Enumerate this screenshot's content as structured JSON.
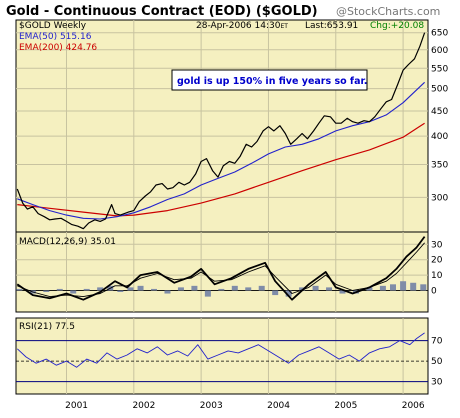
{
  "chart_data": {
    "type": "line",
    "title": "Gold - Continuous Contract (EOD) ($GOLD)",
    "watermark": "@StockCharts.com",
    "ticker_label": "$GOLD Weekly",
    "date_time": "28-Apr-2006 14:30",
    "timezone": "ET",
    "last_label": "Last:653.91",
    "change_label": "Chg:+20.08",
    "annotation": "gold is up 150% in five years so far.",
    "colors": {
      "panel_bg": "#f5f0c0",
      "grid": "#c8c3a0",
      "price": "#000000",
      "ema50": "#2222cc",
      "ema200": "#cc0000",
      "macd_hist": "#7f8ca8",
      "rsi": "#2222cc",
      "ref_line": "#000080",
      "change_text": "#008000"
    },
    "x_axis": {
      "labels": [
        "2001",
        "2002",
        "2003",
        "2004",
        "2005",
        "2006"
      ],
      "range": [
        2000.25,
        2006.37
      ],
      "label_positions": [
        2001.15,
        2002.15,
        2003.15,
        2004.15,
        2005.15,
        2006.15
      ],
      "year_lines": [
        2001,
        2002,
        2003,
        2004,
        2005,
        2006
      ]
    },
    "price_panel": {
      "scale": "log",
      "ylim": [
        255,
        690
      ],
      "ticks": [
        300,
        350,
        400,
        450,
        500,
        550,
        600,
        650
      ],
      "series": [
        {
          "name": "EMA(50)",
          "label": "EMA(50) 515.16",
          "role": "ema50"
        },
        {
          "name": "EMA(200)",
          "label": "EMA(200) 424.76",
          "role": "ema200"
        }
      ],
      "price": {
        "x": [
          2000.27,
          2000.35,
          2000.42,
          2000.5,
          2000.58,
          2000.67,
          2000.75,
          2000.83,
          2000.92,
          2001.0,
          2001.08,
          2001.17,
          2001.25,
          2001.33,
          2001.42,
          2001.5,
          2001.58,
          2001.67,
          2001.72,
          2001.8,
          2001.92,
          2002.0,
          2002.08,
          2002.17,
          2002.25,
          2002.33,
          2002.42,
          2002.5,
          2002.58,
          2002.67,
          2002.75,
          2002.83,
          2002.92,
          2003.0,
          2003.08,
          2003.17,
          2003.25,
          2003.33,
          2003.42,
          2003.5,
          2003.58,
          2003.67,
          2003.75,
          2003.83,
          2003.92,
          2004.0,
          2004.08,
          2004.17,
          2004.25,
          2004.33,
          2004.42,
          2004.5,
          2004.58,
          2004.67,
          2004.75,
          2004.83,
          2004.92,
          2005.0,
          2005.08,
          2005.17,
          2005.25,
          2005.33,
          2005.42,
          2005.5,
          2005.58,
          2005.67,
          2005.75,
          2005.83,
          2005.92,
          2006.0,
          2006.08,
          2006.17,
          2006.25,
          2006.32
        ],
        "y": [
          312,
          292,
          284,
          287,
          278,
          274,
          270,
          271,
          272,
          268,
          264,
          262,
          259,
          266,
          270,
          268,
          271,
          290,
          278,
          276,
          280,
          282,
          294,
          302,
          308,
          318,
          320,
          312,
          314,
          322,
          318,
          322,
          335,
          355,
          360,
          340,
          330,
          348,
          355,
          352,
          364,
          385,
          380,
          390,
          410,
          418,
          410,
          420,
          405,
          385,
          395,
          405,
          395,
          410,
          425,
          440,
          438,
          425,
          425,
          435,
          428,
          425,
          430,
          428,
          438,
          455,
          470,
          475,
          510,
          545,
          560,
          575,
          610,
          650
        ]
      },
      "ema50": {
        "x": [
          2000.27,
          2000.5,
          2000.75,
          2001.0,
          2001.25,
          2001.5,
          2001.75,
          2002.0,
          2002.25,
          2002.5,
          2002.75,
          2003.0,
          2003.25,
          2003.5,
          2003.75,
          2004.0,
          2004.25,
          2004.5,
          2004.75,
          2005.0,
          2005.25,
          2005.5,
          2005.75,
          2006.0,
          2006.32
        ],
        "y": [
          298,
          290,
          282,
          276,
          272,
          271,
          274,
          279,
          287,
          297,
          305,
          318,
          328,
          338,
          352,
          368,
          380,
          385,
          395,
          410,
          420,
          428,
          442,
          468,
          515
        ]
      },
      "ema200": {
        "x": [
          2000.27,
          2000.75,
          2001.25,
          2001.75,
          2002.0,
          2002.5,
          2003.0,
          2003.5,
          2004.0,
          2004.5,
          2005.0,
          2005.5,
          2006.0,
          2006.32
        ],
        "y": [
          290,
          285,
          280,
          275,
          276,
          282,
          292,
          305,
          322,
          340,
          358,
          375,
          398,
          425
        ]
      }
    },
    "macd_panel": {
      "label": "MACD(12,26,9)  35.01",
      "ylim": [
        -14,
        38
      ],
      "ticks": [
        0,
        10,
        20,
        30
      ],
      "macd": {
        "x": [
          2000.27,
          2000.5,
          2000.75,
          2001.0,
          2001.25,
          2001.5,
          2001.72,
          2001.9,
          2002.1,
          2002.35,
          2002.6,
          2002.85,
          2003.0,
          2003.2,
          2003.45,
          2003.7,
          2003.95,
          2004.1,
          2004.35,
          2004.6,
          2004.85,
          2005.0,
          2005.25,
          2005.5,
          2005.75,
          2005.9,
          2006.05,
          2006.2,
          2006.32
        ],
        "y": [
          4,
          -3,
          -5,
          -2,
          -6,
          -1,
          6,
          2,
          10,
          12,
          5,
          9,
          14,
          4,
          8,
          14,
          18,
          6,
          -6,
          4,
          12,
          2,
          -2,
          2,
          8,
          14,
          22,
          28,
          35
        ]
      },
      "signal": {
        "x": [
          2000.27,
          2000.5,
          2000.75,
          2001.0,
          2001.25,
          2001.5,
          2001.72,
          2001.9,
          2002.1,
          2002.35,
          2002.6,
          2002.85,
          2003.0,
          2003.2,
          2003.45,
          2003.7,
          2003.95,
          2004.1,
          2004.35,
          2004.6,
          2004.85,
          2005.0,
          2005.25,
          2005.5,
          2005.75,
          2005.9,
          2006.05,
          2006.2,
          2006.32
        ],
        "y": [
          3,
          -1,
          -4,
          -3,
          -4,
          -2,
          3,
          3,
          8,
          11,
          7,
          8,
          12,
          6,
          7,
          12,
          16,
          9,
          -2,
          2,
          10,
          4,
          0,
          2,
          6,
          11,
          18,
          25,
          31
        ]
      },
      "hist": {
        "x": [
          2000.3,
          2000.5,
          2000.7,
          2000.9,
          2001.1,
          2001.3,
          2001.5,
          2001.65,
          2001.8,
          2001.95,
          2002.1,
          2002.3,
          2002.5,
          2002.7,
          2002.9,
          2003.1,
          2003.3,
          2003.5,
          2003.7,
          2003.9,
          2004.1,
          2004.3,
          2004.5,
          2004.7,
          2004.9,
          2005.1,
          2005.3,
          2005.5,
          2005.7,
          2005.85,
          2006.0,
          2006.15,
          2006.3
        ],
        "y": [
          1,
          -2,
          -1,
          1,
          -2,
          1,
          2,
          3,
          -1,
          2,
          3,
          1,
          -2,
          2,
          3,
          -4,
          1,
          3,
          2,
          3,
          -3,
          -4,
          2,
          3,
          2,
          -2,
          -2,
          2,
          3,
          4,
          6,
          5,
          4
        ]
      }
    },
    "rsi_panel": {
      "label": "RSI(21)  77.5",
      "ylim": [
        18,
        92
      ],
      "ticks": [
        30,
        50,
        70
      ],
      "ref_lines": [
        30,
        70
      ],
      "rsi": {
        "x": [
          2000.27,
          2000.4,
          2000.55,
          2000.7,
          2000.85,
          2001.0,
          2001.15,
          2001.3,
          2001.45,
          2001.6,
          2001.75,
          2001.9,
          2002.05,
          2002.2,
          2002.35,
          2002.5,
          2002.65,
          2002.8,
          2002.95,
          2003.1,
          2003.25,
          2003.4,
          2003.55,
          2003.7,
          2003.85,
          2004.0,
          2004.15,
          2004.3,
          2004.45,
          2004.6,
          2004.75,
          2004.9,
          2005.05,
          2005.2,
          2005.35,
          2005.5,
          2005.65,
          2005.8,
          2005.95,
          2006.1,
          2006.2,
          2006.32
        ],
        "y": [
          62,
          54,
          48,
          52,
          46,
          50,
          44,
          52,
          48,
          58,
          52,
          56,
          62,
          58,
          64,
          56,
          60,
          55,
          66,
          52,
          56,
          60,
          58,
          62,
          66,
          60,
          54,
          48,
          56,
          60,
          64,
          58,
          52,
          56,
          50,
          58,
          62,
          64,
          70,
          66,
          72,
          77.5
        ]
      }
    }
  }
}
